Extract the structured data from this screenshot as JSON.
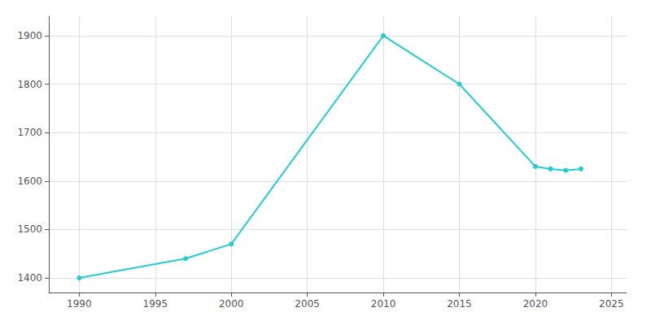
{
  "chart_data": {
    "type": "line",
    "x": [
      1990,
      1997,
      2000,
      2010,
      2015,
      2020,
      2021,
      2022,
      2023
    ],
    "values": [
      1400,
      1440,
      1470,
      1900,
      1800,
      1630,
      1625,
      1622,
      1625
    ],
    "color": "#22CDD0",
    "marker": "circle",
    "xlim": [
      1988,
      2026
    ],
    "ylim": [
      1370,
      1940
    ],
    "xticks": [
      1990,
      1995,
      2000,
      2005,
      2010,
      2015,
      2020,
      2025
    ],
    "yticks": [
      1400,
      1500,
      1600,
      1700,
      1800,
      1900
    ],
    "grid": true
  }
}
